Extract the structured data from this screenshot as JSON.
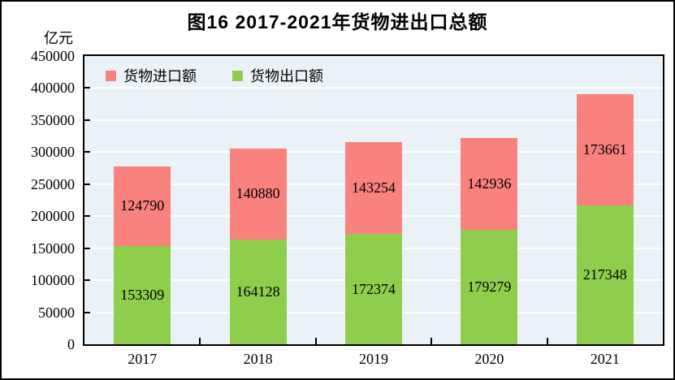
{
  "chart_data": {
    "type": "bar",
    "stacked": true,
    "title": "图16  2017-2021年货物进出口总额",
    "unit_label": "亿元",
    "categories": [
      "2017",
      "2018",
      "2019",
      "2020",
      "2021"
    ],
    "series": [
      {
        "name": "货物出口额",
        "color": "#8FCE4D",
        "values": [
          153309,
          164128,
          172374,
          179279,
          217348
        ]
      },
      {
        "name": "货物进口额",
        "color": "#F9817E",
        "values": [
          124790,
          140880,
          143254,
          142936,
          173661
        ]
      }
    ],
    "legend": [
      "货物进口额",
      "货物出口额"
    ],
    "legend_position": "top-left-inside",
    "ylim": [
      0,
      450000
    ],
    "ytick_step": 50000,
    "ytick_labels": [
      "0",
      "50000",
      "100000",
      "150000",
      "200000",
      "250000",
      "300000",
      "350000",
      "400000",
      "450000"
    ],
    "grid": true,
    "grid_color": "#FFFFFF",
    "plot_bg": "#EBF2F7",
    "value_labels": true
  }
}
